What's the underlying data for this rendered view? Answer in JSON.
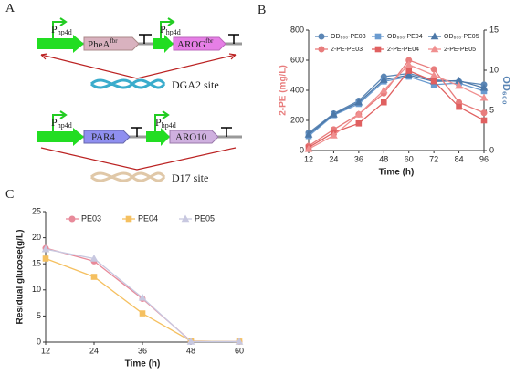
{
  "panel_labels": [
    "A",
    "B",
    "C"
  ],
  "diagram": {
    "promoter": {
      "main": "P",
      "sub": "hp4d"
    },
    "cassette1": {
      "gene1": {
        "text": "PheA",
        "sup": "fbr"
      },
      "gene2": {
        "text": "AROG",
        "sup": "fbr"
      },
      "site": "DGA2 site"
    },
    "cassette2": {
      "gene1": "PAR4",
      "gene2": "ARO10",
      "site": "D17 site"
    }
  },
  "chart_data": [
    {
      "type": "line",
      "x": [
        12,
        24,
        36,
        48,
        60,
        72,
        84,
        96
      ],
      "xlabel": "Time (h)",
      "ylabel": "2-PE (mg/L)",
      "y2label": "OD₆₀₀",
      "xlim": [
        12,
        96
      ],
      "xticks": [
        12,
        24,
        36,
        48,
        60,
        72,
        84,
        96
      ],
      "ylim": [
        0,
        800
      ],
      "yticks": [
        0,
        200,
        400,
        600,
        800
      ],
      "y2lim": [
        0,
        15
      ],
      "y2ticks": [
        0,
        5,
        10,
        15
      ],
      "series": [
        {
          "name": "OD₆₀₀-PE03",
          "color": "#5b86b5",
          "marker": "circle",
          "axis": "y2",
          "values": [
            2.2,
            4.6,
            6.2,
            9.2,
            9.6,
            8.8,
            8.6,
            8.2
          ]
        },
        {
          "name": "OD₆₀₀-PE04",
          "color": "#6a9bd0",
          "marker": "square",
          "axis": "y2",
          "values": [
            1.8,
            4.4,
            5.8,
            8.6,
            9.2,
            8.2,
            8.4,
            7.4
          ]
        },
        {
          "name": "OD₆₀₀-PE05",
          "color": "#4c78a8",
          "marker": "triangle",
          "axis": "y2",
          "values": [
            2.0,
            4.5,
            6.0,
            8.8,
            9.4,
            8.6,
            8.7,
            7.8
          ]
        },
        {
          "name": "2-PE-PE03",
          "color": "#e87c7c",
          "marker": "circle",
          "values": [
            30,
            140,
            240,
            380,
            600,
            540,
            320,
            250
          ]
        },
        {
          "name": "2-PE-PE04",
          "color": "#e06060",
          "marker": "square",
          "values": [
            20,
            120,
            180,
            320,
            530,
            460,
            290,
            200
          ]
        },
        {
          "name": "2-PE-PE05",
          "color": "#f09090",
          "marker": "triangle",
          "values": [
            10,
            100,
            240,
            400,
            570,
            500,
            430,
            350
          ]
        }
      ]
    },
    {
      "type": "line",
      "x": [
        12,
        24,
        36,
        48,
        60
      ],
      "xlabel": "Time (h)",
      "ylabel": "Residual glucose(g/L)",
      "xlim": [
        12,
        60
      ],
      "xticks": [
        12,
        24,
        36,
        48,
        60
      ],
      "ylim": [
        0,
        25
      ],
      "yticks": [
        0,
        5,
        10,
        15,
        20,
        25
      ],
      "series": [
        {
          "name": "PE03",
          "color": "#e88a9a",
          "marker": "circle",
          "values": [
            18,
            15.5,
            8.3,
            0.2,
            0.1
          ]
        },
        {
          "name": "PE04",
          "color": "#f5c060",
          "marker": "square",
          "values": [
            16,
            12.5,
            5.5,
            0.2,
            0.1
          ]
        },
        {
          "name": "PE05",
          "color": "#c8c8e0",
          "marker": "triangle",
          "values": [
            17.8,
            16,
            8.5,
            0.1,
            0.1
          ]
        }
      ]
    }
  ]
}
